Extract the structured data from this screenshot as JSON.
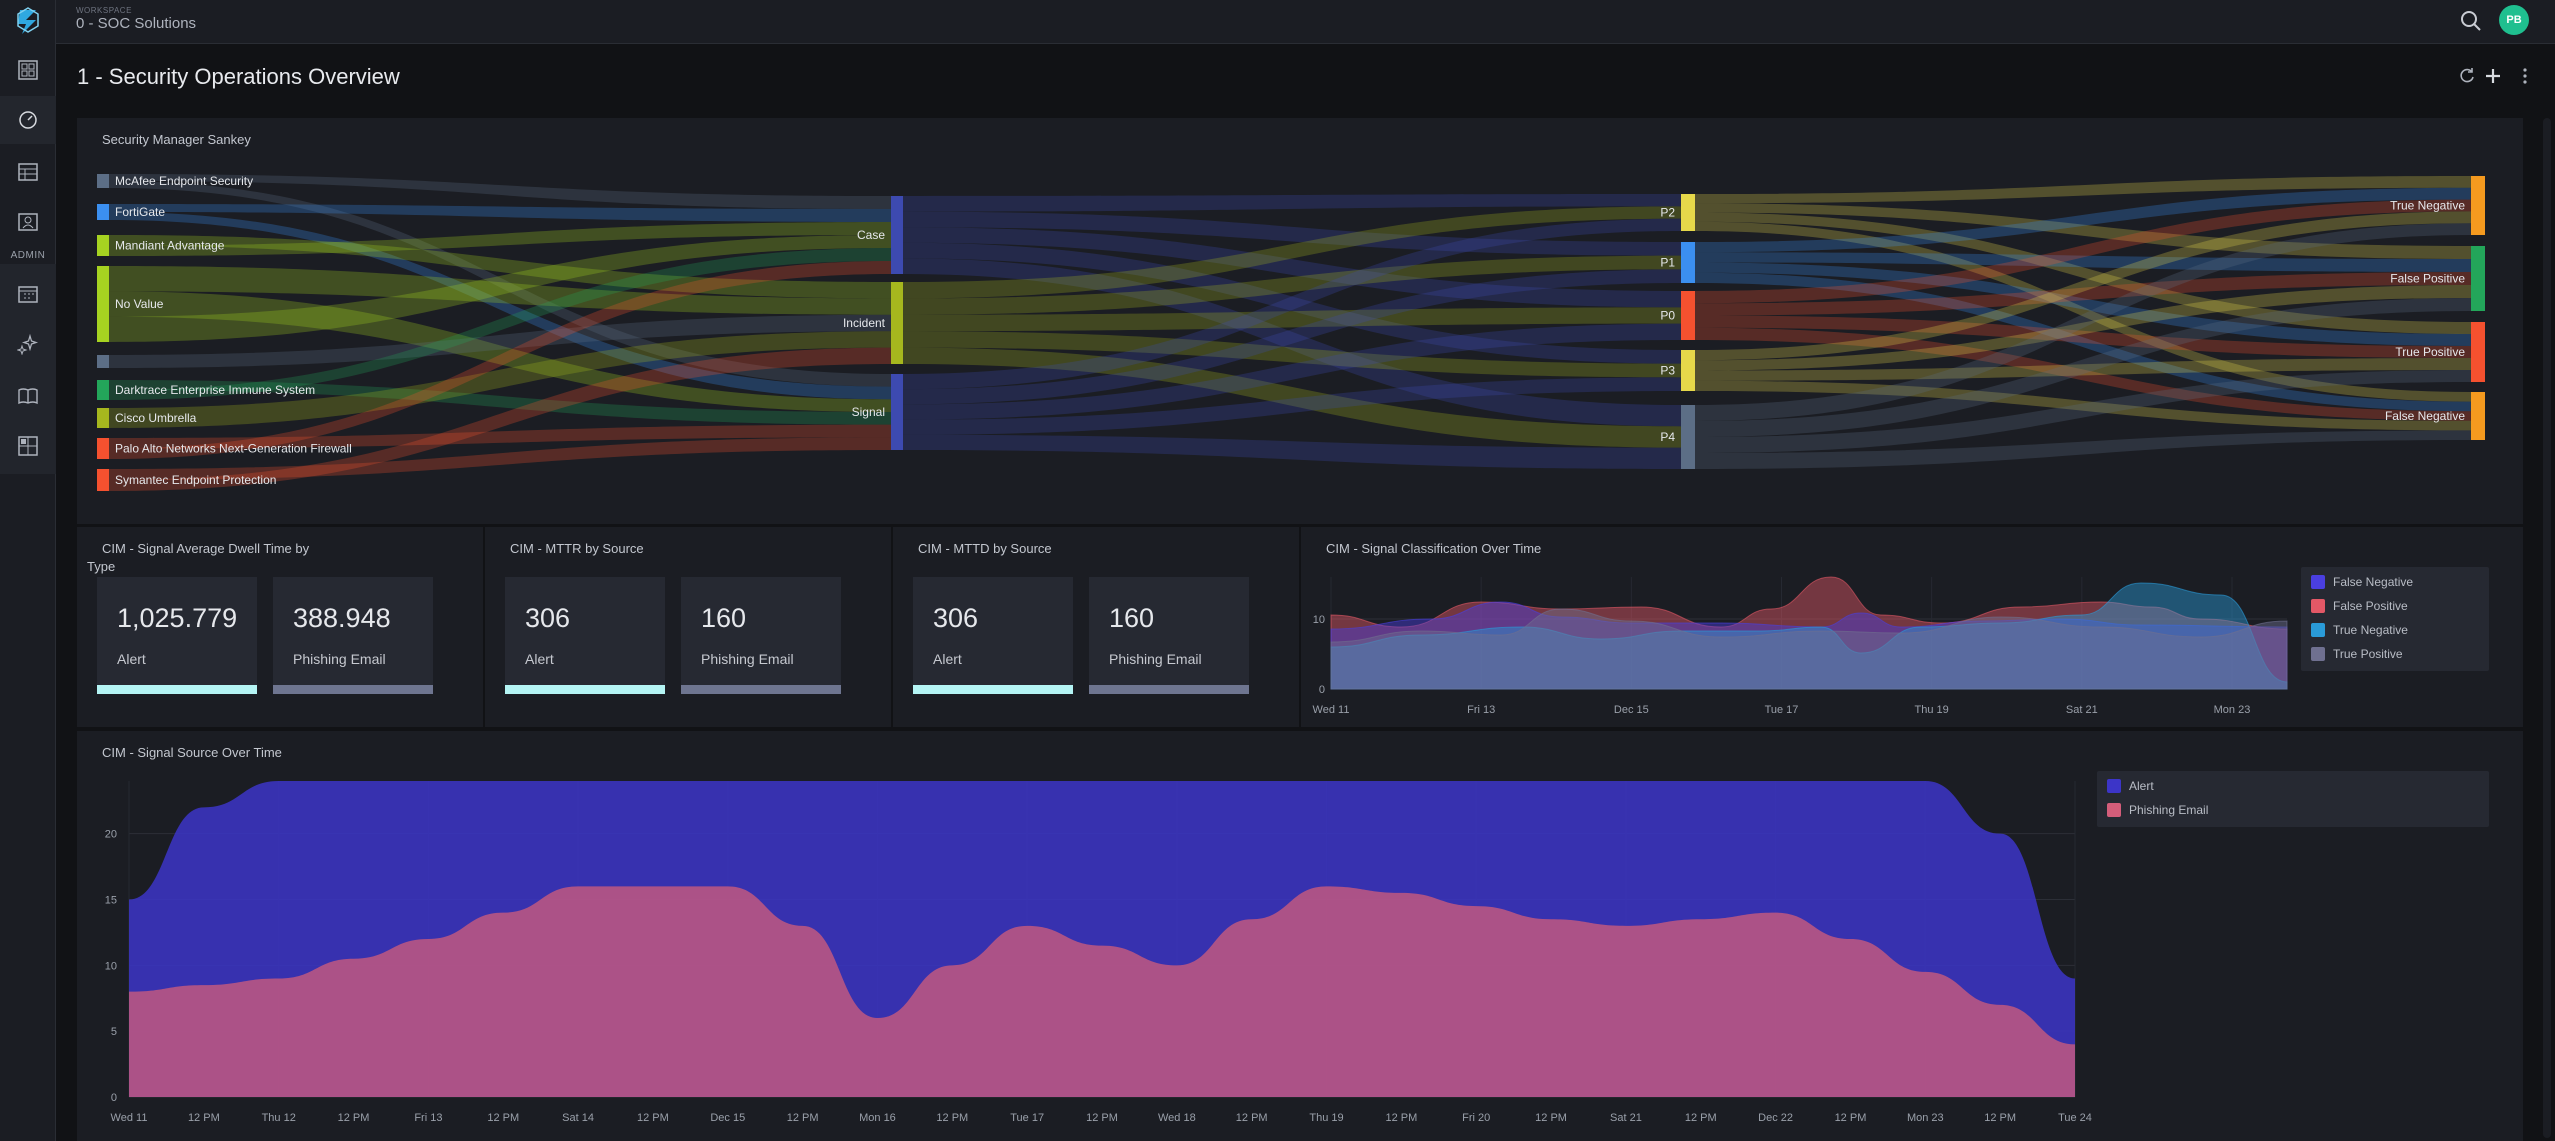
{
  "app": {
    "workspace_label": "WORKSPACE",
    "workspace_name": "0 - SOC Solutions",
    "avatar_initials": "PB",
    "admin_label": "ADMIN",
    "accent_color": "#1fbf8f"
  },
  "page": {
    "title": "1 - Security Operations Overview"
  },
  "sankey": {
    "title": "Security Manager Sankey",
    "sources": [
      {
        "label": "McAfee Endpoint Security",
        "color": "#5c6e86"
      },
      {
        "label": "FortiGate",
        "color": "#3b8ff0"
      },
      {
        "label": "Mandiant Advantage",
        "color": "#a6d321"
      },
      {
        "label": "No Value",
        "color": "#a6d321"
      },
      {
        "label": "",
        "color": "#5c6e86"
      },
      {
        "label": "Darktrace Enterprise Immune System",
        "color": "#23a65a"
      },
      {
        "label": "Cisco Umbrella",
        "color": "#a6b71e"
      },
      {
        "label": "Palo Alto Networks Next-Generation Firewall",
        "color": "#f5512f"
      },
      {
        "label": "Symantec Endpoint Protection",
        "color": "#f5512f"
      }
    ],
    "types": [
      {
        "label": "Case",
        "color": "#3d4ab0"
      },
      {
        "label": "Incident",
        "color": "#a6b71e"
      },
      {
        "label": "Signal",
        "color": "#3d4ab0"
      }
    ],
    "priorities": [
      {
        "label": "P2",
        "color": "#e6d84a"
      },
      {
        "label": "P1",
        "color": "#3b8ff0"
      },
      {
        "label": "P0",
        "color": "#f5512f"
      },
      {
        "label": "P3",
        "color": "#e6d84a"
      },
      {
        "label": "P4",
        "color": "#5c6e86"
      }
    ],
    "outcomes": [
      {
        "label": "True Negative",
        "color": "#f59a1f"
      },
      {
        "label": "False Positive",
        "color": "#23a65a"
      },
      {
        "label": "True Positive",
        "color": "#f5512f"
      },
      {
        "label": "False Negative",
        "color": "#f59a1f"
      }
    ]
  },
  "dwell": {
    "title_line1": "CIM - Signal Average Dwell Time by",
    "title_line2": "Type",
    "cards": [
      {
        "value": "1,025.779",
        "label": "Alert"
      },
      {
        "value": "388.948",
        "label": "Phishing Email"
      }
    ]
  },
  "mttr": {
    "title": "CIM - MTTR by Source",
    "cards": [
      {
        "value": "306",
        "label": "Alert"
      },
      {
        "value": "160",
        "label": "Phishing Email"
      }
    ]
  },
  "mttd": {
    "title": "CIM - MTTD by Source",
    "cards": [
      {
        "value": "306",
        "label": "Alert"
      },
      {
        "value": "160",
        "label": "Phishing Email"
      }
    ]
  },
  "classification": {
    "title": "CIM - Signal Classification Over Time",
    "legend": [
      {
        "label": "False Negative",
        "color": "#4a3fe0"
      },
      {
        "label": "False Positive",
        "color": "#e35866"
      },
      {
        "label": "True Negative",
        "color": "#2a9bd8"
      },
      {
        "label": "True Positive",
        "color": "#6f7090"
      }
    ],
    "y_ticks": [
      "10",
      "0"
    ],
    "x_ticks": [
      "Wed 11",
      "Fri 13",
      "Dec 15",
      "Tue 17",
      "Thu 19",
      "Sat 21",
      "Mon 23"
    ]
  },
  "chart_data": {
    "type": "area",
    "title": "CIM - Signal Source Over Time",
    "xlabel": "",
    "ylabel": "",
    "ylim": [
      0,
      24
    ],
    "y_ticks": [
      "0",
      "5",
      "10",
      "15",
      "20"
    ],
    "x_ticks": [
      "Wed 11",
      "12 PM",
      "Thu 12",
      "12 PM",
      "Fri 13",
      "12 PM",
      "Sat 14",
      "12 PM",
      "Dec 15",
      "12 PM",
      "Mon 16",
      "12 PM",
      "Tue 17",
      "12 PM",
      "Wed 18",
      "12 PM",
      "Thu 19",
      "12 PM",
      "Fri 20",
      "12 PM",
      "Sat 21",
      "12 PM",
      "Dec 22",
      "12 PM",
      "Mon 23",
      "12 PM",
      "Tue 24"
    ],
    "legend_position": "right",
    "series": [
      {
        "name": "Alert",
        "color": "#3c35c8",
        "values": [
          15,
          22,
          24,
          24,
          24,
          24,
          24,
          24,
          24,
          24,
          24,
          24,
          24,
          24,
          24,
          24,
          24,
          24,
          24,
          24,
          24,
          24,
          24,
          24,
          24,
          20,
          9
        ]
      },
      {
        "name": "Phishing Email",
        "color": "#d45d7a",
        "values": [
          8,
          8.5,
          9,
          10.5,
          12,
          14,
          16,
          16,
          16,
          13,
          6,
          10,
          13,
          11.5,
          10,
          13.5,
          16,
          15.5,
          14.5,
          13.5,
          13,
          13.5,
          14,
          12,
          9.5,
          7,
          4
        ]
      }
    ]
  }
}
